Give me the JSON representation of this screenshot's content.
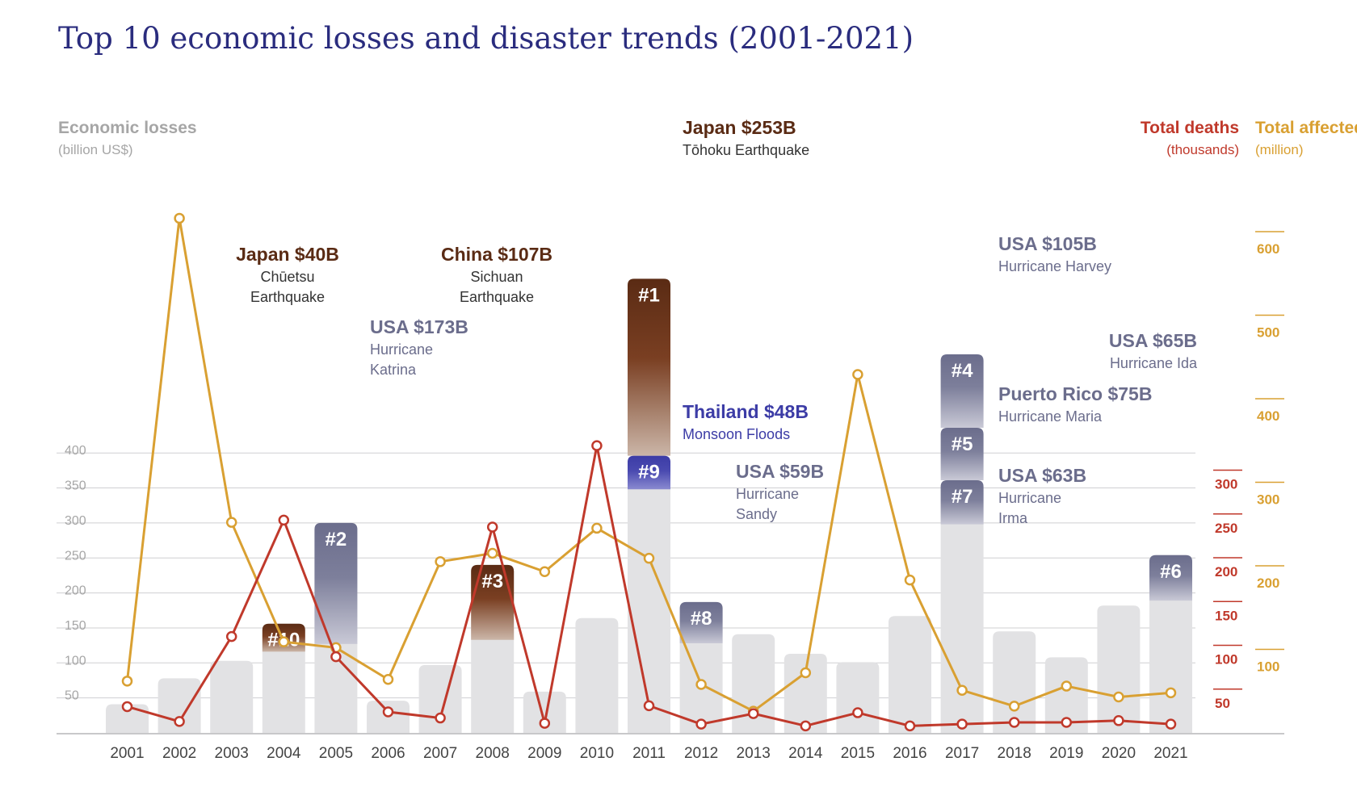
{
  "chart_data": {
    "type": "bar",
    "title": "Top 10 economic losses and disaster trends (2001-2021)",
    "left_axis": {
      "label": "Economic losses",
      "unit": "(billion US$)",
      "range": [
        0,
        400
      ],
      "ticks": [
        50,
        100,
        150,
        200,
        250,
        300,
        350,
        400
      ]
    },
    "deaths_axis": {
      "label": "Total deaths",
      "unit": "(thousands)",
      "ticks": [
        50,
        100,
        150,
        200,
        250,
        300
      ]
    },
    "affected_axis": {
      "label": "Total affected",
      "unit": "(million)",
      "ticks": [
        100,
        200,
        300,
        400,
        500,
        600
      ]
    },
    "categories": [
      "2001",
      "2002",
      "2003",
      "2004",
      "2005",
      "2006",
      "2007",
      "2008",
      "2009",
      "2010",
      "2011",
      "2012",
      "2013",
      "2014",
      "2015",
      "2016",
      "2017",
      "2018",
      "2019",
      "2020",
      "2021"
    ],
    "economic_losses": [
      41,
      78,
      103,
      156,
      300,
      46,
      97,
      240,
      59,
      164,
      396,
      187,
      141,
      113,
      101,
      167,
      361,
      145,
      108,
      182,
      254
    ],
    "deaths": [
      30,
      13,
      110,
      243,
      87,
      24,
      17,
      235,
      11,
      328,
      31,
      10,
      22,
      8,
      23,
      8,
      10,
      12,
      12,
      14,
      10
    ],
    "affected": [
      62,
      616,
      252,
      109,
      102,
      64,
      205,
      215,
      193,
      245,
      209,
      58,
      26,
      72,
      429,
      183,
      51,
      32,
      56,
      43,
      48
    ],
    "top_events": [
      {
        "rank": "#1",
        "year": "2011",
        "loss": 253,
        "headline": "Japan $253B",
        "desc": [
          "Tōhoku Earthquake"
        ]
      },
      {
        "rank": "#2",
        "year": "2005",
        "loss": 173,
        "headline": "USA $173B",
        "desc": [
          "Hurricane",
          "Katrina"
        ]
      },
      {
        "rank": "#3",
        "year": "2008",
        "loss": 107,
        "headline": "China $107B",
        "desc": [
          "Sichuan",
          "Earthquake"
        ]
      },
      {
        "rank": "#4",
        "year": "2017",
        "loss": 105,
        "headline": "USA $105B",
        "desc": [
          "Hurricane Harvey"
        ]
      },
      {
        "rank": "#5",
        "year": "2017",
        "loss": 75,
        "headline": "Puerto Rico $75B",
        "desc": [
          "Hurricane Maria"
        ]
      },
      {
        "rank": "#6",
        "year": "2021",
        "loss": 65,
        "headline": "USA $65B",
        "desc": [
          "Hurricane Ida"
        ]
      },
      {
        "rank": "#7",
        "year": "2017",
        "loss": 63,
        "headline": "USA $63B",
        "desc": [
          "Hurricane",
          "Irma"
        ]
      },
      {
        "rank": "#8",
        "year": "2012",
        "loss": 59,
        "headline": "USA $59B",
        "desc": [
          "Hurricane",
          "Sandy"
        ]
      },
      {
        "rank": "#9",
        "year": "2011",
        "loss": 48,
        "headline": "Thailand $48B",
        "desc": [
          "Monsoon Floods"
        ]
      },
      {
        "rank": "#10",
        "year": "2004",
        "loss": 40,
        "headline": "Japan $40B",
        "desc": [
          "Chūetsu",
          "Earthquake"
        ]
      }
    ],
    "colors": {
      "title": "#2a2c7e",
      "base_bar": "#e2e2e4",
      "earthquake": "#5a2b14",
      "storm": "#6b6d8c",
      "flood": "#3c3ca6",
      "deaths": "#c0392b",
      "affected": "#d9a032",
      "axis_text": "#a6a6a6",
      "tick_text": "#444444"
    }
  }
}
